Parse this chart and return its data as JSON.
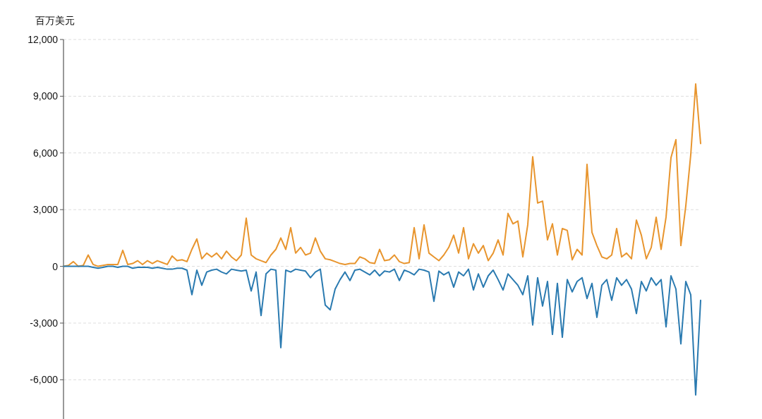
{
  "chart_data": {
    "type": "line",
    "ylabel": "百万美元",
    "categories": [
      null,
      null,
      null,
      null,
      null,
      null,
      null,
      null,
      null,
      null,
      null,
      null,
      null,
      null,
      null,
      null,
      null,
      null,
      null,
      null,
      null,
      null,
      null,
      null,
      null,
      null,
      null,
      null,
      null,
      null,
      null,
      null,
      null,
      null,
      null,
      null,
      null,
      null,
      null,
      null,
      null,
      null,
      null,
      null,
      null,
      null,
      null,
      null,
      null,
      null,
      null,
      null,
      null,
      null,
      null,
      null,
      null,
      null,
      null,
      null,
      null,
      null,
      null,
      null,
      null,
      null,
      null,
      null,
      null,
      null,
      null,
      null,
      null,
      null,
      null,
      null,
      null,
      null,
      null,
      null,
      null,
      null,
      null,
      null,
      null,
      null,
      null,
      null,
      null,
      null,
      null,
      null,
      null,
      null,
      null,
      null,
      null,
      null,
      null,
      null,
      null,
      null,
      null,
      null,
      null,
      null,
      null,
      null,
      null,
      null,
      null,
      null,
      null,
      null,
      null,
      null,
      null,
      null,
      null,
      null,
      null,
      null,
      null,
      null,
      null,
      null,
      null,
      null,
      null,
      null
    ],
    "series": [
      {
        "color": "#e8952e",
        "values": [
          0,
          50,
          250,
          0,
          50,
          600,
          100,
          0,
          50,
          100,
          100,
          100,
          850,
          100,
          150,
          300,
          100,
          300,
          150,
          300,
          200,
          100,
          550,
          300,
          350,
          250,
          900,
          1450,
          400,
          700,
          500,
          700,
          400,
          800,
          500,
          300,
          600,
          2550,
          600,
          400,
          300,
          200,
          600,
          900,
          1500,
          900,
          2050,
          700,
          1000,
          600,
          700,
          1500,
          800,
          400,
          350,
          250,
          150,
          100,
          150,
          150,
          500,
          400,
          200,
          150,
          900,
          300,
          350,
          600,
          250,
          150,
          200,
          2050,
          400,
          2200,
          700,
          500,
          300,
          600,
          1000,
          1650,
          700,
          2050,
          400,
          1200,
          700,
          1100,
          300,
          700,
          1400,
          600,
          2800,
          2250,
          2400,
          500,
          2200,
          5800,
          3350,
          3450,
          1400,
          2250,
          600,
          2000,
          1900,
          350,
          900,
          600,
          5400,
          1800,
          1100,
          500,
          400,
          600,
          2000,
          500,
          700,
          400,
          2450,
          1650,
          400,
          1000,
          2600,
          900,
          2600,
          5750,
          6700,
          1100,
          3200,
          5900,
          9650,
          6500
        ]
      },
      {
        "color": "#2a7ab0",
        "values": [
          0,
          0,
          0,
          0,
          0,
          0,
          -50,
          -100,
          -50,
          0,
          0,
          -50,
          0,
          0,
          -100,
          -50,
          -50,
          -50,
          -100,
          -50,
          -100,
          -150,
          -150,
          -100,
          -100,
          -200,
          -1500,
          -200,
          -1000,
          -300,
          -200,
          -150,
          -300,
          -400,
          -150,
          -200,
          -250,
          -200,
          -1300,
          -300,
          -2600,
          -400,
          -150,
          -200,
          -4300,
          -200,
          -300,
          -150,
          -200,
          -250,
          -600,
          -300,
          -150,
          -2050,
          -2300,
          -1200,
          -700,
          -300,
          -750,
          -200,
          -150,
          -300,
          -450,
          -200,
          -500,
          -250,
          -300,
          -150,
          -750,
          -200,
          -300,
          -450,
          -150,
          -200,
          -300,
          -1850,
          -250,
          -450,
          -300,
          -1100,
          -300,
          -500,
          -150,
          -1250,
          -400,
          -1100,
          -500,
          -200,
          -700,
          -1250,
          -400,
          -700,
          -1000,
          -1500,
          -500,
          -3100,
          -600,
          -2100,
          -800,
          -3600,
          -900,
          -3750,
          -700,
          -1350,
          -800,
          -600,
          -1700,
          -900,
          -2700,
          -1000,
          -700,
          -1800,
          -600,
          -1000,
          -700,
          -1200,
          -2500,
          -800,
          -1300,
          -600,
          -1000,
          -700,
          -3200,
          -500,
          -1200,
          -4100,
          -800,
          -1500,
          -6800,
          -1800
        ]
      }
    ],
    "ylim": [
      -8000,
      12000
    ],
    "yticks": [
      {
        "value": -6000,
        "label": "-6,000"
      },
      {
        "value": -3000,
        "label": "-3,000"
      },
      {
        "value": 0,
        "label": "0"
      },
      {
        "value": 3000,
        "label": "3,000"
      },
      {
        "value": 6000,
        "label": "6,000"
      },
      {
        "value": 9000,
        "label": "9,000"
      },
      {
        "value": 12000,
        "label": "12,000"
      }
    ],
    "grid": "y"
  }
}
